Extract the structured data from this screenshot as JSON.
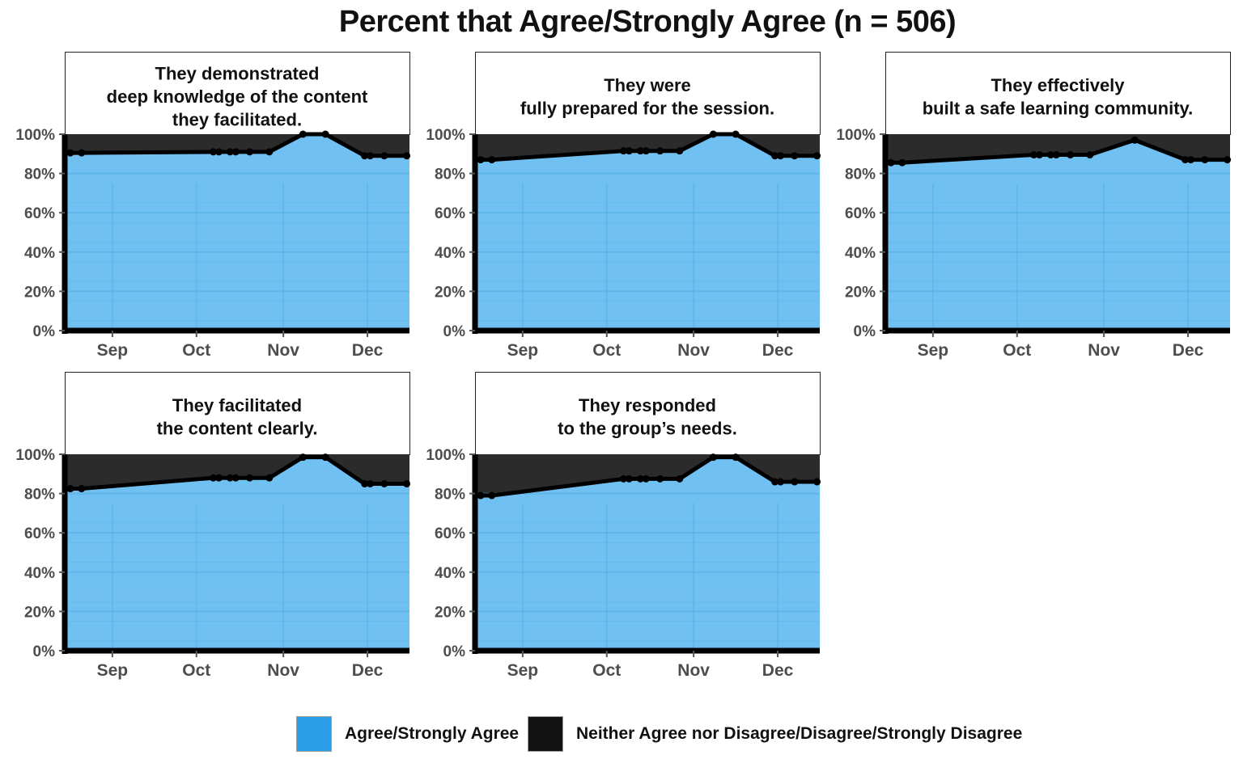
{
  "colors": {
    "agree": "#70C1F2",
    "disagree": "#2B2B2B",
    "line": "#000000",
    "legend_agree": "#2A9DE8",
    "legend_disagree": "#121212"
  },
  "chart_data": {
    "type": "area",
    "title": "Percent that Agree/Strongly Agree (n = 506)",
    "x_ticks": [
      "Sep",
      "Oct",
      "Nov",
      "Dec"
    ],
    "y_ticks": [
      "0%",
      "20%",
      "40%",
      "60%",
      "80%",
      "100%"
    ],
    "ylim": [
      0,
      100
    ],
    "grid": true,
    "legend": {
      "position": "bottom",
      "entries": [
        {
          "label": "Agree/Strongly Agree",
          "color": "#2A9DE8"
        },
        {
          "label": "Neither Agree nor Disagree/Disagree/Strongly Disagree",
          "color": "#121212"
        }
      ]
    },
    "x_domain": [
      "2023-08-15",
      "2023-12-16"
    ],
    "panels": [
      {
        "title_lines": [
          "They demonstrated",
          "deep knowledge of the content",
          "they facilitated."
        ],
        "points": [
          {
            "x": "2023-08-17",
            "y": 90.5
          },
          {
            "x": "2023-08-21",
            "y": 90.5
          },
          {
            "x": "2023-10-07",
            "y": 91
          },
          {
            "x": "2023-10-09",
            "y": 91
          },
          {
            "x": "2023-10-13",
            "y": 91
          },
          {
            "x": "2023-10-15",
            "y": 91
          },
          {
            "x": "2023-10-20",
            "y": 91
          },
          {
            "x": "2023-10-27",
            "y": 91
          },
          {
            "x": "2023-11-08",
            "y": 100
          },
          {
            "x": "2023-11-16",
            "y": 100
          },
          {
            "x": "2023-11-30",
            "y": 89
          },
          {
            "x": "2023-12-02",
            "y": 89
          },
          {
            "x": "2023-12-07",
            "y": 89
          },
          {
            "x": "2023-12-15",
            "y": 89
          }
        ]
      },
      {
        "title_lines": [
          "They were",
          "fully prepared for the session."
        ],
        "points": [
          {
            "x": "2023-08-17",
            "y": 87
          },
          {
            "x": "2023-08-21",
            "y": 87
          },
          {
            "x": "2023-10-07",
            "y": 91.5
          },
          {
            "x": "2023-10-09",
            "y": 91.5
          },
          {
            "x": "2023-10-13",
            "y": 91.5
          },
          {
            "x": "2023-10-15",
            "y": 91.5
          },
          {
            "x": "2023-10-20",
            "y": 91.5
          },
          {
            "x": "2023-10-27",
            "y": 91.5
          },
          {
            "x": "2023-11-08",
            "y": 100
          },
          {
            "x": "2023-11-16",
            "y": 100
          },
          {
            "x": "2023-11-30",
            "y": 89
          },
          {
            "x": "2023-12-02",
            "y": 89
          },
          {
            "x": "2023-12-07",
            "y": 89
          },
          {
            "x": "2023-12-15",
            "y": 89
          }
        ]
      },
      {
        "title_lines": [
          "They effectively",
          "built a safe learning community."
        ],
        "points": [
          {
            "x": "2023-08-17",
            "y": 85.5
          },
          {
            "x": "2023-08-21",
            "y": 85.5
          },
          {
            "x": "2023-10-07",
            "y": 89.5
          },
          {
            "x": "2023-10-09",
            "y": 89.5
          },
          {
            "x": "2023-10-13",
            "y": 89.5
          },
          {
            "x": "2023-10-15",
            "y": 89.5
          },
          {
            "x": "2023-10-20",
            "y": 89.5
          },
          {
            "x": "2023-10-27",
            "y": 89.5
          },
          {
            "x": "2023-11-12",
            "y": 97
          },
          {
            "x": "2023-11-30",
            "y": 87
          },
          {
            "x": "2023-12-02",
            "y": 87
          },
          {
            "x": "2023-12-07",
            "y": 87
          },
          {
            "x": "2023-12-15",
            "y": 87
          }
        ]
      },
      {
        "title_lines": [
          "They facilitated",
          "the content clearly."
        ],
        "points": [
          {
            "x": "2023-08-17",
            "y": 82.5
          },
          {
            "x": "2023-08-21",
            "y": 82.5
          },
          {
            "x": "2023-10-07",
            "y": 88
          },
          {
            "x": "2023-10-09",
            "y": 88
          },
          {
            "x": "2023-10-13",
            "y": 88
          },
          {
            "x": "2023-10-15",
            "y": 88
          },
          {
            "x": "2023-10-20",
            "y": 88
          },
          {
            "x": "2023-10-27",
            "y": 88
          },
          {
            "x": "2023-11-08",
            "y": 98.5
          },
          {
            "x": "2023-11-16",
            "y": 98.5
          },
          {
            "x": "2023-11-30",
            "y": 85
          },
          {
            "x": "2023-12-02",
            "y": 85
          },
          {
            "x": "2023-12-07",
            "y": 85
          },
          {
            "x": "2023-12-15",
            "y": 85
          }
        ]
      },
      {
        "title_lines": [
          "They responded",
          "to the group’s needs."
        ],
        "points": [
          {
            "x": "2023-08-17",
            "y": 79
          },
          {
            "x": "2023-08-21",
            "y": 79
          },
          {
            "x": "2023-10-07",
            "y": 87.5
          },
          {
            "x": "2023-10-09",
            "y": 87.5
          },
          {
            "x": "2023-10-13",
            "y": 87.5
          },
          {
            "x": "2023-10-15",
            "y": 87.5
          },
          {
            "x": "2023-10-20",
            "y": 87.5
          },
          {
            "x": "2023-10-27",
            "y": 87.5
          },
          {
            "x": "2023-11-08",
            "y": 98.5
          },
          {
            "x": "2023-11-16",
            "y": 98.5
          },
          {
            "x": "2023-11-30",
            "y": 86
          },
          {
            "x": "2023-12-02",
            "y": 86
          },
          {
            "x": "2023-12-07",
            "y": 86
          },
          {
            "x": "2023-12-15",
            "y": 86
          }
        ]
      }
    ]
  }
}
